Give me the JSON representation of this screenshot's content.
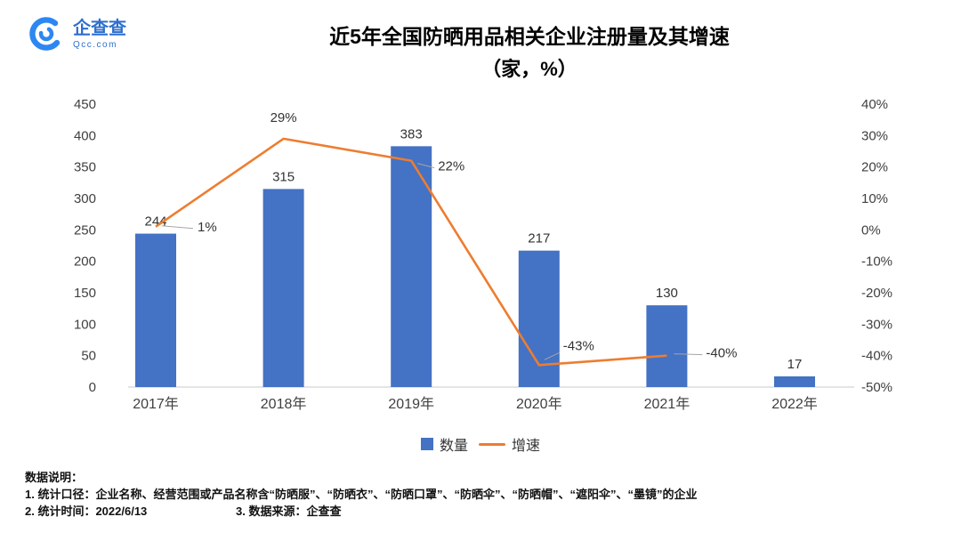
{
  "brand": {
    "name": "企查查",
    "domain": "Qcc.com"
  },
  "title": {
    "line1": "近5年全国防晒用品相关企业注册量及其增速",
    "line2": "（家，%）"
  },
  "legend": {
    "bars": "数量",
    "line": "增速"
  },
  "footnote": {
    "heading": "数据说明：",
    "line1": "1. 统计口径：企业名称、经营范围或产品名称含“防晒服”、“防晒衣”、“防晒口罩”、“防晒伞”、“防晒帽”、“遮阳伞”、“墨镜”的企业",
    "line2a": "2. 统计时间：2022/6/13",
    "line2b": "3. 数据来源：企查查"
  },
  "chart_data": {
    "type": "bar",
    "subtype": "bar+line combo, dual axis",
    "title": "近5年全国防晒用品相关企业注册量及其增速（家，%）",
    "categories": [
      "2017年",
      "2018年",
      "2019年",
      "2020年",
      "2021年",
      "2022年"
    ],
    "series": [
      {
        "name": "数量",
        "type": "bar",
        "axis": "left",
        "color": "#4472C4",
        "values": [
          244,
          315,
          383,
          217,
          130,
          17
        ]
      },
      {
        "name": "增速",
        "type": "line",
        "axis": "right",
        "color": "#ED7D31",
        "values": [
          1,
          29,
          22,
          -43,
          -40,
          null
        ],
        "labels": [
          "1%",
          "29%",
          "22%",
          "-43%",
          "-40%"
        ]
      }
    ],
    "left_axis": {
      "min": 0,
      "max": 450,
      "step": 50,
      "ticks": [
        "450",
        "400",
        "350",
        "300",
        "250",
        "200",
        "150",
        "100",
        "50",
        "0"
      ]
    },
    "right_axis": {
      "min": -50,
      "max": 40,
      "step": 10,
      "ticks": [
        "40%",
        "30%",
        "20%",
        "10%",
        "0%",
        "-10%",
        "-20%",
        "-30%",
        "-40%",
        "-50%"
      ]
    },
    "grid": false,
    "legend_position": "bottom"
  }
}
